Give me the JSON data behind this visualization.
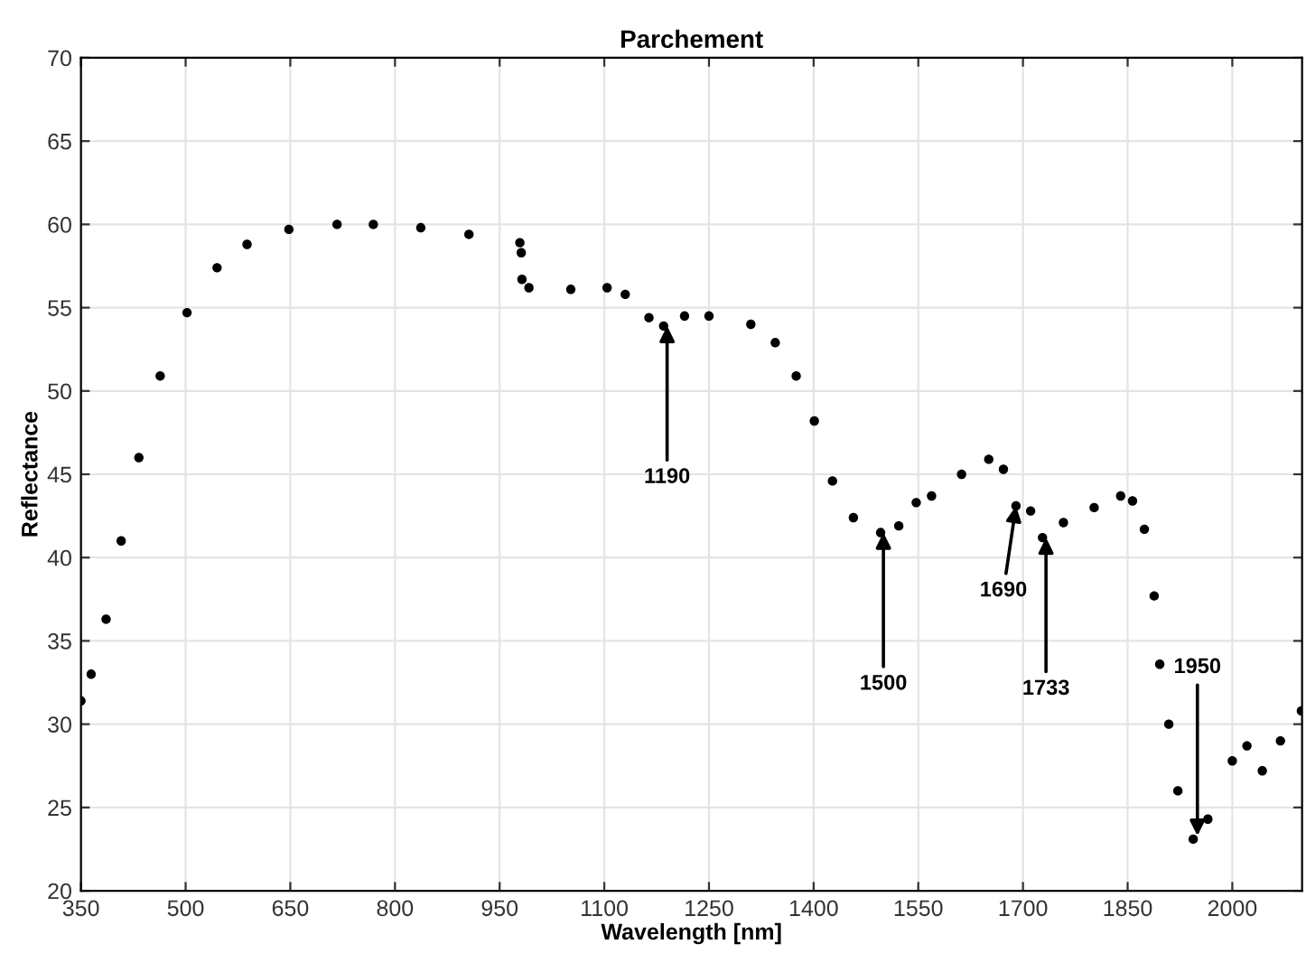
{
  "chart_data": {
    "type": "scatter",
    "title": "Parchement",
    "xlabel": "Wavelength [nm]",
    "ylabel": "Reflectance",
    "x": [
      350,
      364.6,
      386,
      407.6,
      433,
      463.5,
      502,
      545,
      588,
      648,
      717,
      769,
      837,
      906,
      979,
      981,
      982,
      992,
      1052,
      1104,
      1130,
      1164,
      1185,
      1215,
      1250,
      1310,
      1345,
      1375,
      1401,
      1427,
      1457,
      1496,
      1522,
      1547,
      1569,
      1612,
      1651,
      1672,
      1690,
      1711,
      1728,
      1758,
      1802,
      1840,
      1857,
      1874,
      1888,
      1896,
      1909,
      1922,
      1944,
      1965,
      2000,
      2021,
      2043,
      2069,
      2099
    ],
    "series": [
      {
        "color": "#000000",
        "values": [
          31.4,
          33.0,
          36.3,
          41.0,
          46.0,
          50.9,
          54.7,
          57.4,
          58.8,
          59.7,
          60.0,
          60.0,
          59.8,
          59.4,
          58.9,
          58.3,
          56.7,
          56.2,
          56.1,
          56.2,
          55.8,
          54.4,
          53.9,
          54.5,
          54.5,
          54.0,
          52.9,
          50.9,
          48.2,
          44.6,
          42.4,
          41.5,
          41.9,
          43.3,
          43.7,
          45.0,
          45.9,
          45.3,
          43.1,
          42.8,
          41.2,
          42.1,
          43.0,
          43.7,
          43.4,
          41.7,
          37.7,
          33.6,
          30.0,
          26.0,
          23.1,
          24.3,
          27.8,
          28.7,
          27.2,
          29.0,
          30.8
        ]
      }
    ],
    "annotations": [
      {
        "text": "1190",
        "x": 1190,
        "y": 53.9
      },
      {
        "text": "1500",
        "x": 1500,
        "y": 41.5
      },
      {
        "text": "1690",
        "x": 1690,
        "y": 43.1
      },
      {
        "text": "1733",
        "x": 1733,
        "y": 41.2
      },
      {
        "text": "1950",
        "x": 1950,
        "y": 23.3
      }
    ],
    "xlim": [
      350,
      2100
    ],
    "ylim": [
      20,
      70
    ],
    "xticks": [
      350,
      500,
      650,
      800,
      950,
      1100,
      1250,
      1400,
      1550,
      1700,
      1850,
      2000
    ],
    "yticks": [
      20,
      25,
      30,
      35,
      40,
      45,
      50,
      55,
      60,
      65,
      70
    ],
    "grid": true,
    "marker": "circle"
  }
}
